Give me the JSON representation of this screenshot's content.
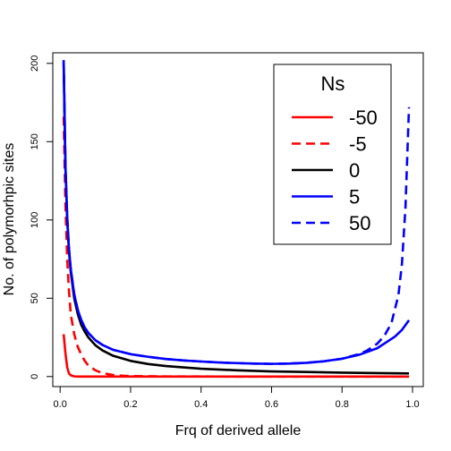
{
  "chart_data": {
    "type": "line",
    "title": "",
    "xlabel": "Frq of derived allele",
    "ylabel": "No. of polymorhpic sites",
    "xlim": [
      0,
      1
    ],
    "ylim": [
      0,
      205
    ],
    "x_ticks": [
      "0.0",
      "0.2",
      "0.4",
      "0.6",
      "0.8",
      "1.0"
    ],
    "y_ticks": [
      "0",
      "50",
      "100",
      "150",
      "200"
    ],
    "grid": false,
    "legend": {
      "title": "Ns",
      "placement": "top-right",
      "entries": [
        "-50",
        "-5",
        "0",
        "5",
        "50"
      ]
    },
    "series": [
      {
        "name": "-50",
        "color": "#ff0000",
        "dash": "solid",
        "x": [
          0.01,
          0.015,
          0.02,
          0.025,
          0.03,
          0.04,
          0.05,
          0.1,
          0.2,
          0.4,
          0.6,
          0.8,
          0.99
        ],
        "y": [
          27,
          15,
          6,
          2,
          0.8,
          0.1,
          0,
          0,
          0,
          0,
          0,
          0,
          0
        ]
      },
      {
        "name": "-5",
        "color": "#ff0000",
        "dash": "dashed",
        "x": [
          0.01,
          0.015,
          0.02,
          0.025,
          0.03,
          0.04,
          0.05,
          0.06,
          0.07,
          0.08,
          0.1,
          0.12,
          0.15,
          0.18,
          0.2,
          0.3,
          0.5,
          0.7,
          0.99
        ],
        "y": [
          166,
          110,
          75,
          55,
          40,
          27,
          19,
          14,
          10,
          7,
          4,
          2.2,
          1,
          0.5,
          0.3,
          0.1,
          0,
          0,
          0
        ]
      },
      {
        "name": "0",
        "color": "#000000",
        "dash": "solid",
        "x": [
          0.01,
          0.015,
          0.02,
          0.025,
          0.03,
          0.04,
          0.05,
          0.06,
          0.07,
          0.08,
          0.1,
          0.12,
          0.15,
          0.2,
          0.25,
          0.3,
          0.4,
          0.5,
          0.6,
          0.7,
          0.8,
          0.9,
          0.99
        ],
        "y": [
          200,
          133,
          100,
          80,
          67,
          50,
          40,
          33,
          28.6,
          25,
          20,
          16.7,
          13.3,
          10,
          8,
          6.7,
          5,
          4,
          3.3,
          2.9,
          2.5,
          2.2,
          2
        ]
      },
      {
        "name": "5",
        "color": "#0000ff",
        "dash": "solid",
        "x": [
          0.01,
          0.015,
          0.02,
          0.025,
          0.03,
          0.04,
          0.05,
          0.06,
          0.07,
          0.08,
          0.1,
          0.12,
          0.15,
          0.2,
          0.25,
          0.3,
          0.35,
          0.4,
          0.45,
          0.5,
          0.55,
          0.6,
          0.65,
          0.7,
          0.75,
          0.8,
          0.85,
          0.9,
          0.95,
          0.97,
          0.99
        ],
        "y": [
          202,
          135,
          102,
          82,
          69,
          52.5,
          42.6,
          36,
          31.3,
          27.9,
          23.2,
          20.2,
          17.1,
          14.3,
          12.6,
          11.2,
          10.3,
          9.6,
          9.0,
          8.6,
          8.3,
          8.1,
          8.3,
          8.8,
          9.8,
          11.4,
          14.0,
          18.1,
          25.5,
          29.8,
          36
        ]
      },
      {
        "name": "50",
        "color": "#0000ff",
        "dash": "dashed",
        "x": [
          0.01,
          0.015,
          0.02,
          0.025,
          0.03,
          0.04,
          0.05,
          0.06,
          0.07,
          0.08,
          0.1,
          0.12,
          0.15,
          0.2,
          0.25,
          0.3,
          0.35,
          0.4,
          0.45,
          0.5,
          0.55,
          0.6,
          0.65,
          0.7,
          0.75,
          0.8,
          0.85,
          0.87,
          0.9,
          0.92,
          0.94,
          0.96,
          0.97,
          0.98,
          0.99
        ],
        "y": [
          202,
          135,
          102,
          82,
          69,
          52.5,
          42.6,
          36,
          31.3,
          27.9,
          23.2,
          20.2,
          17.1,
          14.3,
          12.6,
          11.2,
          10.3,
          9.6,
          9.0,
          8.6,
          8.3,
          8.1,
          8.3,
          8.8,
          9.8,
          11.4,
          14.5,
          16.5,
          21,
          26,
          34,
          52,
          72,
          108,
          172
        ]
      }
    ]
  }
}
